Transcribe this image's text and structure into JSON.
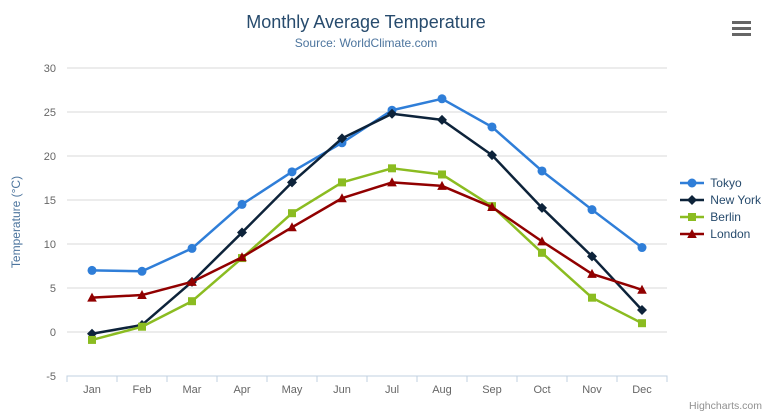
{
  "chart": {
    "context_menu_icon": "hamburger-menu-icon"
  },
  "credits": {
    "label": "Highcharts.com"
  },
  "chart_data": {
    "type": "line",
    "title": "Monthly Average Temperature",
    "subtitle": "Source: WorldClimate.com",
    "categories": [
      "Jan",
      "Feb",
      "Mar",
      "Apr",
      "May",
      "Jun",
      "Jul",
      "Aug",
      "Sep",
      "Oct",
      "Nov",
      "Dec"
    ],
    "xlabel": "",
    "ylabel": "Temperature (°C)",
    "ylim": [
      -5,
      30
    ],
    "yticks": [
      -5,
      0,
      5,
      10,
      15,
      20,
      25,
      30
    ],
    "grid": true,
    "legend_position": "right",
    "series": [
      {
        "name": "Tokyo",
        "color": "#2f7ed8",
        "marker": "circle",
        "values": [
          7.0,
          6.9,
          9.5,
          14.5,
          18.2,
          21.5,
          25.2,
          26.5,
          23.3,
          18.3,
          13.9,
          9.6
        ]
      },
      {
        "name": "New York",
        "color": "#0d233a",
        "marker": "diamond",
        "values": [
          -0.2,
          0.8,
          5.7,
          11.3,
          17.0,
          22.0,
          24.8,
          24.1,
          20.1,
          14.1,
          8.6,
          2.5
        ]
      },
      {
        "name": "Berlin",
        "color": "#8bbc21",
        "marker": "square",
        "values": [
          -0.9,
          0.6,
          3.5,
          8.4,
          13.5,
          17.0,
          18.6,
          17.9,
          14.3,
          9.0,
          3.9,
          1.0
        ]
      },
      {
        "name": "London",
        "color": "#910000",
        "marker": "triangle",
        "values": [
          3.9,
          4.2,
          5.7,
          8.5,
          11.9,
          15.2,
          17.0,
          16.6,
          14.2,
          10.3,
          6.6,
          4.8
        ]
      }
    ],
    "axis_line_color": "#c0d0e0",
    "grid_line_color": "#d8d8d8"
  }
}
